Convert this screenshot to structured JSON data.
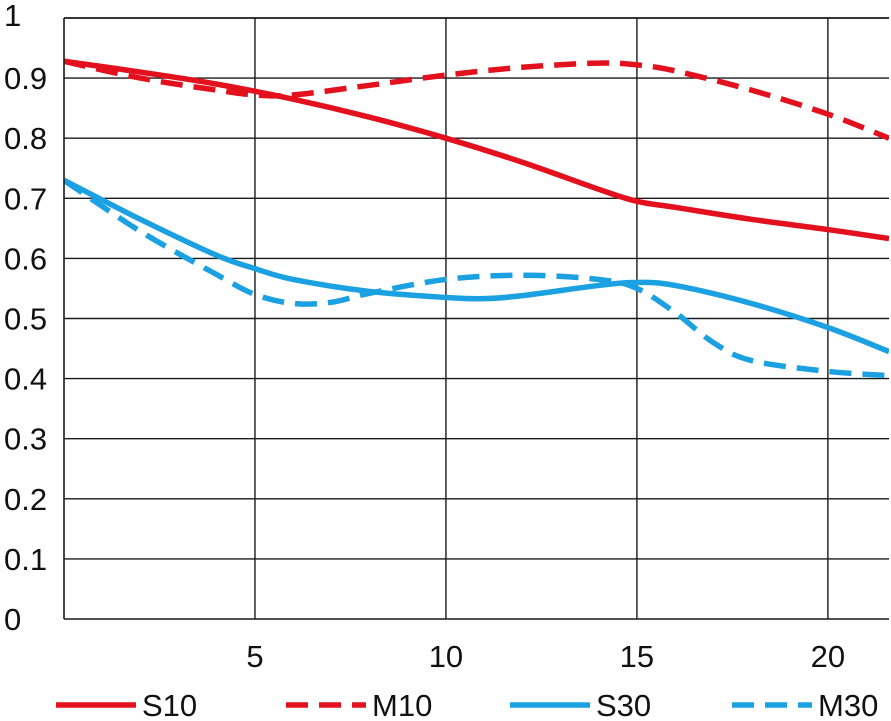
{
  "chart_data": {
    "type": "line",
    "title": "",
    "xlabel": "",
    "ylabel": "",
    "xlim": [
      0,
      21.6
    ],
    "ylim": [
      0,
      1
    ],
    "x_ticks": [
      5,
      10,
      15,
      20
    ],
    "x_tick_labels": [
      "5",
      "10",
      "15",
      "20"
    ],
    "y_ticks": [
      0,
      0.1,
      0.2,
      0.3,
      0.4,
      0.5,
      0.6,
      0.7,
      0.8,
      0.9,
      1
    ],
    "y_tick_labels": [
      "0",
      "0.1",
      "0.2",
      "0.3",
      "0.4",
      "0.5",
      "0.6",
      "0.7",
      "0.8",
      "0.9",
      "1"
    ],
    "grid": true,
    "legend_position": "bottom",
    "series": [
      {
        "name": "S10",
        "color": "#e3101d",
        "dash": "solid",
        "x": [
          0,
          2,
          4,
          6,
          8,
          10,
          12,
          14,
          15,
          16,
          18,
          20,
          21.6
        ],
        "y": [
          0.928,
          0.91,
          0.89,
          0.865,
          0.835,
          0.8,
          0.76,
          0.715,
          0.695,
          0.685,
          0.665,
          0.648,
          0.633
        ]
      },
      {
        "name": "M10",
        "color": "#e3101d",
        "dash": "dashed",
        "x": [
          0,
          2,
          4,
          5,
          6,
          8,
          10,
          12,
          14,
          15,
          16,
          18,
          20,
          21.6
        ],
        "y": [
          0.928,
          0.9,
          0.88,
          0.872,
          0.872,
          0.888,
          0.905,
          0.918,
          0.925,
          0.922,
          0.912,
          0.88,
          0.84,
          0.8
        ]
      },
      {
        "name": "S30",
        "color": "#1ba1e2",
        "dash": "solid",
        "x": [
          0,
          2,
          4,
          5,
          6,
          8,
          10,
          11,
          12,
          14,
          15,
          16,
          18,
          20,
          21.6
        ],
        "y": [
          0.73,
          0.665,
          0.605,
          0.583,
          0.565,
          0.545,
          0.535,
          0.533,
          0.538,
          0.555,
          0.56,
          0.555,
          0.525,
          0.485,
          0.445
        ]
      },
      {
        "name": "M30",
        "color": "#1ba1e2",
        "dash": "dashed",
        "x": [
          0,
          2,
          4,
          5,
          6,
          7,
          8,
          10,
          12,
          14,
          15,
          16,
          17,
          18,
          20,
          21.6
        ],
        "y": [
          0.73,
          0.645,
          0.573,
          0.54,
          0.525,
          0.527,
          0.542,
          0.565,
          0.572,
          0.565,
          0.55,
          0.51,
          0.46,
          0.43,
          0.412,
          0.405
        ]
      }
    ]
  }
}
